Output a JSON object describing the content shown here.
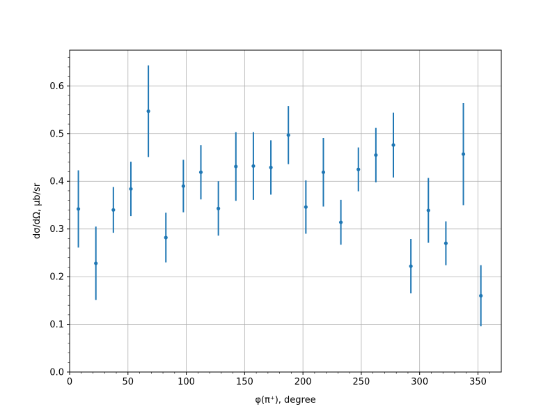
{
  "chart_data": {
    "type": "scatter",
    "title": "",
    "xlabel": "φ(π⁺), degree",
    "ylabel": "dσ/dΩ, μb/sr",
    "xlim": [
      0,
      370
    ],
    "ylim": [
      0,
      0.675
    ],
    "grid": true,
    "x_ticks": [
      0,
      50,
      100,
      150,
      200,
      250,
      300,
      350
    ],
    "y_ticks": [
      0.0,
      0.1,
      0.2,
      0.3,
      0.4,
      0.5,
      0.6
    ],
    "x_tick_labels": [
      "0",
      "50",
      "100",
      "150",
      "200",
      "250",
      "300",
      "350"
    ],
    "y_tick_labels": [
      "0.0",
      "0.1",
      "0.2",
      "0.3",
      "0.4",
      "0.5",
      "0.6"
    ],
    "marker_color": "#1f77b4",
    "series": [
      {
        "x": [
          7.5,
          22.5,
          37.5,
          52.5,
          67.5,
          82.5,
          97.5,
          112.5,
          127.5,
          142.5,
          157.5,
          172.5,
          187.5,
          202.5,
          217.5,
          232.5,
          247.5,
          262.5,
          277.5,
          292.5,
          307.5,
          322.5,
          337.5,
          352.5
        ],
        "y": [
          0.342,
          0.228,
          0.34,
          0.384,
          0.547,
          0.282,
          0.39,
          0.419,
          0.343,
          0.431,
          0.432,
          0.429,
          0.497,
          0.346,
          0.419,
          0.314,
          0.425,
          0.455,
          0.476,
          0.222,
          0.339,
          0.27,
          0.457,
          0.16
        ],
        "yerr": [
          0.081,
          0.077,
          0.048,
          0.057,
          0.096,
          0.052,
          0.055,
          0.057,
          0.057,
          0.072,
          0.071,
          0.057,
          0.061,
          0.056,
          0.072,
          0.047,
          0.046,
          0.057,
          0.068,
          0.057,
          0.068,
          0.046,
          0.107,
          0.064
        ]
      }
    ]
  }
}
